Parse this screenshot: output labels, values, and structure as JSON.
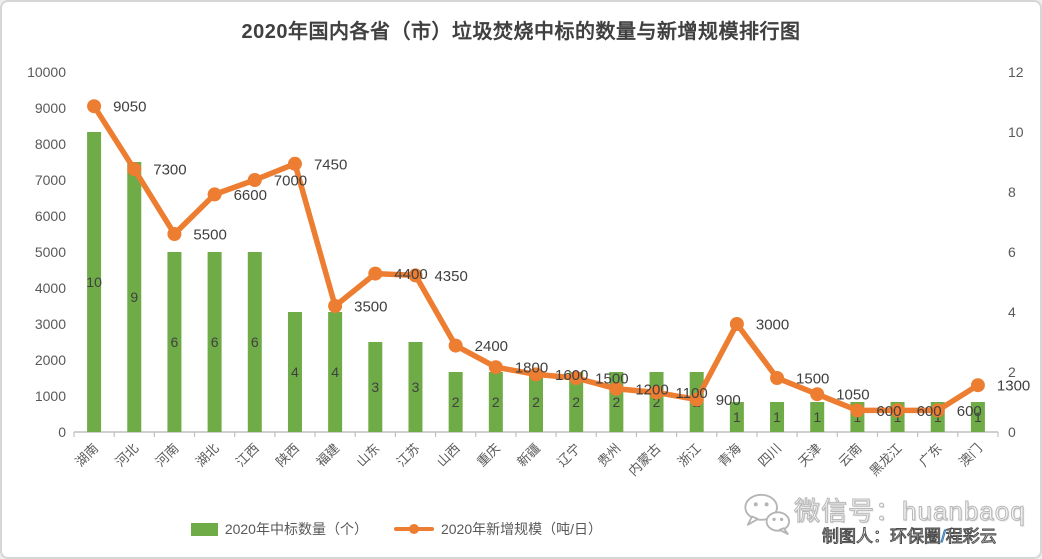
{
  "title": "2020年国内各省（市）垃圾焚烧中标的数量与新增规模排行图",
  "chart_data": {
    "type": "bar+line combo",
    "categories": [
      "湖南",
      "河北",
      "河南",
      "湖北",
      "江西",
      "陕西",
      "福建",
      "山东",
      "江苏",
      "山西",
      "重庆",
      "新疆",
      "辽宁",
      "贵州",
      "内蒙古",
      "浙江",
      "青海",
      "四川",
      "天津",
      "云南",
      "黑龙江",
      "广东",
      "澳门"
    ],
    "series": [
      {
        "name": "2020年中标数量（个）",
        "type": "bar",
        "axis": "right",
        "color": "#6FAC47",
        "values": [
          10,
          9,
          6,
          6,
          6,
          4,
          4,
          3,
          3,
          2,
          2,
          2,
          2,
          2,
          2,
          2,
          1,
          1,
          1,
          1,
          1,
          1,
          1
        ]
      },
      {
        "name": "2020年新增规模（吨/日）",
        "type": "line",
        "axis": "left",
        "color": "#ED7D31",
        "values": [
          9050,
          7300,
          5500,
          6600,
          7000,
          7450,
          3500,
          4400,
          4350,
          2400,
          1800,
          1600,
          1500,
          1200,
          1100,
          900,
          3000,
          1500,
          1050,
          600,
          600,
          600,
          1300
        ]
      }
    ],
    "left_axis": {
      "min": 0,
      "max": 10000,
      "step": 1000
    },
    "right_axis": {
      "min": 0,
      "max": 12,
      "step": 2
    },
    "grid": false,
    "legend_position": "bottom",
    "data_labels": true,
    "label_color": "#404040",
    "axis_text_color": "#595959",
    "axis_line_color": "#BFBFBF"
  },
  "watermark": {
    "wechat_id": "微信号：huanbaoq",
    "credit_prefix": "制图人：环保圈",
    "credit_slash": "/",
    "credit_name": "程彩云"
  }
}
